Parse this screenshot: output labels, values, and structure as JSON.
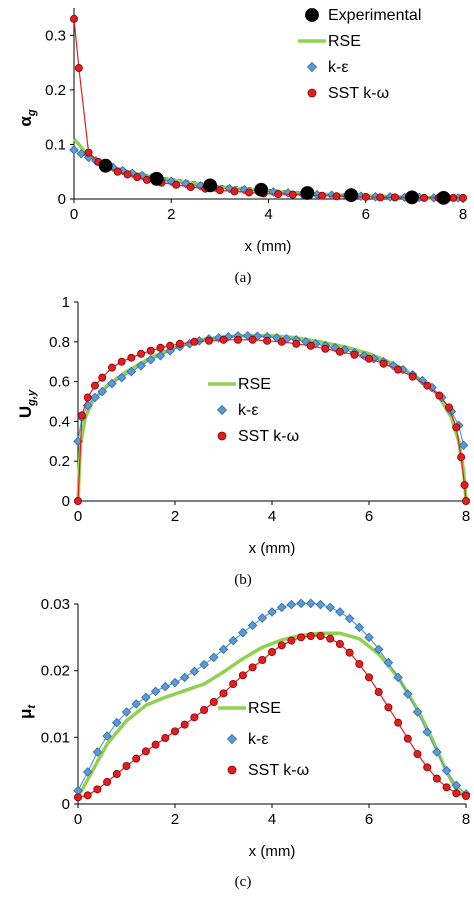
{
  "colors": {
    "rse": "#92d050",
    "keps_fill": "#5b9bd5",
    "keps_edge": "#2e6da4",
    "sst": "#e02020",
    "sst_edge": "#8b0000",
    "exp": "#000000"
  },
  "chart_data": [
    {
      "type": "line",
      "caption": "(a)",
      "xlabel": "x (mm)",
      "ylabel_main": "α",
      "ylabel_sub": "g",
      "xlim": [
        0,
        8
      ],
      "ylim": [
        0,
        0.35
      ],
      "xticks": [
        0,
        2,
        4,
        6,
        8
      ],
      "yticks": [
        0,
        0.1,
        0.2,
        0.3
      ],
      "ytick_labels": [
        "0",
        "0.1",
        "0.2",
        "0.3"
      ],
      "legend": [
        {
          "key": "exp",
          "label": "Experimental",
          "marker": "big-dot"
        },
        {
          "key": "rse",
          "label": "RSE",
          "marker": "line"
        },
        {
          "key": "keps",
          "label": "k-ε",
          "marker": "diamond"
        },
        {
          "key": "sst",
          "label": "SST k-ω",
          "marker": "dot"
        }
      ],
      "legend_placement": "top-right",
      "series": {
        "exp": {
          "x": [
            0.65,
            1.7,
            2.8,
            3.85,
            4.8,
            5.7,
            6.95,
            7.6
          ],
          "y": [
            0.061,
            0.037,
            0.025,
            0.017,
            0.011,
            0.007,
            0.003,
            0.002
          ]
        },
        "rse": {
          "x": [
            0,
            0.1,
            0.2,
            0.4,
            0.7,
            1,
            1.5,
            2,
            3,
            4,
            5,
            6,
            7,
            7.8,
            8
          ],
          "y": [
            0.11,
            0.1,
            0.089,
            0.075,
            0.062,
            0.053,
            0.042,
            0.034,
            0.022,
            0.014,
            0.009,
            0.006,
            0.003,
            0.002,
            0.002
          ]
        },
        "keps": {
          "x": [
            0,
            0.15,
            0.3,
            0.45,
            0.6,
            0.8,
            1,
            1.2,
            1.4,
            1.6,
            1.8,
            2,
            2.3,
            2.6,
            2.9,
            3.2,
            3.5,
            3.8,
            4.1,
            4.4,
            4.7,
            5,
            5.3,
            5.6,
            5.9,
            6.2,
            6.5,
            6.8,
            7.1,
            7.4,
            7.7,
            7.9
          ],
          "y": [
            0.09,
            0.083,
            0.076,
            0.07,
            0.064,
            0.058,
            0.052,
            0.047,
            0.043,
            0.039,
            0.035,
            0.032,
            0.028,
            0.024,
            0.021,
            0.019,
            0.017,
            0.015,
            0.013,
            0.011,
            0.009,
            0.008,
            0.007,
            0.006,
            0.005,
            0.004,
            0.004,
            0.003,
            0.003,
            0.002,
            0.002,
            0.002
          ]
        },
        "sst": {
          "x": [
            0,
            0.1,
            0.3,
            0.5,
            0.7,
            0.9,
            1.1,
            1.3,
            1.5,
            1.8,
            2.1,
            2.4,
            2.7,
            3,
            3.3,
            3.6,
            3.9,
            4.2,
            4.5,
            4.8,
            5.1,
            5.4,
            5.7,
            6,
            6.3,
            6.6,
            6.9,
            7.2,
            7.5,
            7.8,
            8
          ],
          "y": [
            0.33,
            0.24,
            0.085,
            0.068,
            0.058,
            0.05,
            0.045,
            0.04,
            0.035,
            0.03,
            0.026,
            0.022,
            0.019,
            0.016,
            0.014,
            0.012,
            0.01,
            0.009,
            0.008,
            0.007,
            0.006,
            0.005,
            0.004,
            0.004,
            0.003,
            0.003,
            0.002,
            0.002,
            0.002,
            0.002,
            0.002
          ]
        },
        "dashed": {
          "x": [
            0.6,
            1,
            2,
            3,
            4,
            5,
            6,
            7,
            7.8
          ],
          "y": [
            0.065,
            0.052,
            0.037,
            0.025,
            0.017,
            0.011,
            0.007,
            0.004,
            0.003
          ]
        }
      }
    },
    {
      "type": "line",
      "caption": "(b)",
      "xlabel": "x (mm)",
      "ylabel_main": "U",
      "ylabel_sub": "g,y",
      "xlim": [
        0,
        8
      ],
      "ylim": [
        0,
        1
      ],
      "xticks": [
        0,
        2,
        4,
        6,
        8
      ],
      "yticks": [
        0,
        0.2,
        0.4,
        0.6,
        0.8,
        1
      ],
      "ytick_labels": [
        "0",
        "0.2",
        "0.4",
        "0.6",
        "0.8",
        "1"
      ],
      "legend": [
        {
          "key": "rse",
          "label": "RSE",
          "marker": "line"
        },
        {
          "key": "keps",
          "label": "k-ε",
          "marker": "diamond"
        },
        {
          "key": "sst",
          "label": "SST k-ω",
          "marker": "dot"
        }
      ],
      "legend_placement": "center-left",
      "series": {
        "rse": {
          "x": [
            0,
            0.05,
            0.15,
            0.3,
            0.6,
            1,
            1.5,
            2,
            2.5,
            3,
            3.5,
            4,
            4.5,
            5,
            5.5,
            6,
            6.5,
            7,
            7.4,
            7.7,
            7.85,
            7.95,
            8
          ],
          "y": [
            0,
            0.28,
            0.42,
            0.5,
            0.58,
            0.65,
            0.72,
            0.77,
            0.81,
            0.825,
            0.83,
            0.83,
            0.82,
            0.8,
            0.775,
            0.74,
            0.69,
            0.62,
            0.54,
            0.42,
            0.3,
            0.15,
            0
          ]
        },
        "keps": {
          "x": [
            0,
            0.08,
            0.2,
            0.35,
            0.5,
            0.7,
            0.9,
            1.1,
            1.3,
            1.5,
            1.7,
            1.9,
            2.1,
            2.3,
            2.5,
            2.7,
            2.9,
            3.1,
            3.3,
            3.5,
            3.7,
            3.9,
            4.1,
            4.3,
            4.5,
            4.7,
            4.9,
            5.1,
            5.3,
            5.5,
            5.7,
            5.9,
            6.1,
            6.3,
            6.5,
            6.7,
            6.9,
            7.1,
            7.3,
            7.5,
            7.7,
            7.85,
            7.95
          ],
          "y": [
            0.3,
            0.42,
            0.48,
            0.52,
            0.55,
            0.59,
            0.62,
            0.65,
            0.68,
            0.71,
            0.73,
            0.755,
            0.775,
            0.79,
            0.805,
            0.815,
            0.82,
            0.825,
            0.83,
            0.83,
            0.828,
            0.825,
            0.82,
            0.815,
            0.81,
            0.8,
            0.79,
            0.78,
            0.77,
            0.76,
            0.745,
            0.73,
            0.715,
            0.7,
            0.68,
            0.66,
            0.635,
            0.605,
            0.57,
            0.52,
            0.45,
            0.38,
            0.28
          ]
        },
        "sst": {
          "x": [
            0,
            0.08,
            0.2,
            0.35,
            0.5,
            0.7,
            0.9,
            1.1,
            1.3,
            1.5,
            1.7,
            1.9,
            2.1,
            2.4,
            2.7,
            3,
            3.3,
            3.6,
            3.9,
            4.2,
            4.5,
            4.8,
            5.1,
            5.4,
            5.7,
            6,
            6.3,
            6.6,
            6.9,
            7.2,
            7.45,
            7.65,
            7.8,
            7.9,
            7.97,
            8
          ],
          "y": [
            0,
            0.43,
            0.52,
            0.58,
            0.62,
            0.67,
            0.7,
            0.72,
            0.74,
            0.755,
            0.77,
            0.78,
            0.79,
            0.8,
            0.805,
            0.81,
            0.81,
            0.81,
            0.805,
            0.8,
            0.79,
            0.78,
            0.765,
            0.75,
            0.735,
            0.715,
            0.69,
            0.66,
            0.625,
            0.58,
            0.53,
            0.47,
            0.37,
            0.22,
            0.08,
            0
          ]
        }
      }
    },
    {
      "type": "line",
      "caption": "(c)",
      "xlabel": "x (mm)",
      "ylabel_main": "μ",
      "ylabel_sub": "t",
      "xlim": [
        0,
        8
      ],
      "ylim": [
        0,
        0.03
      ],
      "xticks": [
        0,
        2,
        4,
        6,
        8
      ],
      "yticks": [
        0,
        0.01,
        0.02,
        0.03
      ],
      "ytick_labels": [
        "0",
        "0.01",
        "0.02",
        "0.03"
      ],
      "legend": [
        {
          "key": "rse",
          "label": "RSE",
          "marker": "line"
        },
        {
          "key": "keps",
          "label": "k-ε",
          "marker": "diamond"
        },
        {
          "key": "sst",
          "label": "SST k-ω",
          "marker": "dot"
        }
      ],
      "legend_placement": "bottom-center",
      "series": {
        "rse": {
          "x": [
            0,
            0.3,
            0.6,
            1,
            1.4,
            1.8,
            2.2,
            2.6,
            3,
            3.4,
            3.8,
            4.2,
            4.6,
            5,
            5.4,
            5.8,
            6.2,
            6.6,
            7,
            7.3,
            7.6,
            7.8,
            8
          ],
          "y": [
            0.001,
            0.005,
            0.009,
            0.0125,
            0.0148,
            0.016,
            0.017,
            0.018,
            0.0198,
            0.0218,
            0.0235,
            0.0246,
            0.0253,
            0.0256,
            0.0256,
            0.0248,
            0.0225,
            0.019,
            0.0142,
            0.0098,
            0.0048,
            0.0022,
            0.001
          ]
        },
        "keps": {
          "x": [
            0,
            0.2,
            0.4,
            0.6,
            0.8,
            1,
            1.2,
            1.4,
            1.6,
            1.8,
            2,
            2.2,
            2.4,
            2.6,
            2.8,
            3,
            3.2,
            3.4,
            3.6,
            3.8,
            4,
            4.2,
            4.4,
            4.6,
            4.8,
            5,
            5.2,
            5.4,
            5.6,
            5.8,
            6,
            6.2,
            6.4,
            6.6,
            6.8,
            7,
            7.2,
            7.4,
            7.6,
            7.8,
            8
          ],
          "y": [
            0.002,
            0.0048,
            0.0078,
            0.0102,
            0.0122,
            0.0138,
            0.015,
            0.016,
            0.0169,
            0.0176,
            0.0182,
            0.019,
            0.0199,
            0.0209,
            0.022,
            0.0232,
            0.0245,
            0.0257,
            0.0268,
            0.0279,
            0.0288,
            0.0295,
            0.0299,
            0.0301,
            0.0301,
            0.0299,
            0.0295,
            0.0288,
            0.0278,
            0.0265,
            0.025,
            0.0232,
            0.0212,
            0.019,
            0.0165,
            0.0138,
            0.0108,
            0.0078,
            0.005,
            0.0028,
            0.0015
          ]
        },
        "sst": {
          "x": [
            0,
            0.2,
            0.4,
            0.6,
            0.8,
            1,
            1.2,
            1.4,
            1.6,
            1.8,
            2,
            2.2,
            2.4,
            2.6,
            2.8,
            3,
            3.2,
            3.4,
            3.6,
            3.8,
            4,
            4.2,
            4.4,
            4.6,
            4.8,
            5,
            5.2,
            5.4,
            5.6,
            5.8,
            6,
            6.2,
            6.4,
            6.6,
            6.8,
            7,
            7.2,
            7.4,
            7.6,
            7.8,
            8
          ],
          "y": [
            0.001,
            0.0013,
            0.0022,
            0.0033,
            0.0045,
            0.0057,
            0.0068,
            0.0079,
            0.0089,
            0.0099,
            0.0109,
            0.0119,
            0.013,
            0.0141,
            0.0153,
            0.0166,
            0.018,
            0.0193,
            0.0205,
            0.0216,
            0.0228,
            0.0238,
            0.0245,
            0.025,
            0.0252,
            0.0252,
            0.0248,
            0.024,
            0.0227,
            0.021,
            0.019,
            0.0168,
            0.0145,
            0.0122,
            0.0098,
            0.0075,
            0.0055,
            0.0038,
            0.0025,
            0.0016,
            0.0012
          ]
        }
      }
    }
  ]
}
